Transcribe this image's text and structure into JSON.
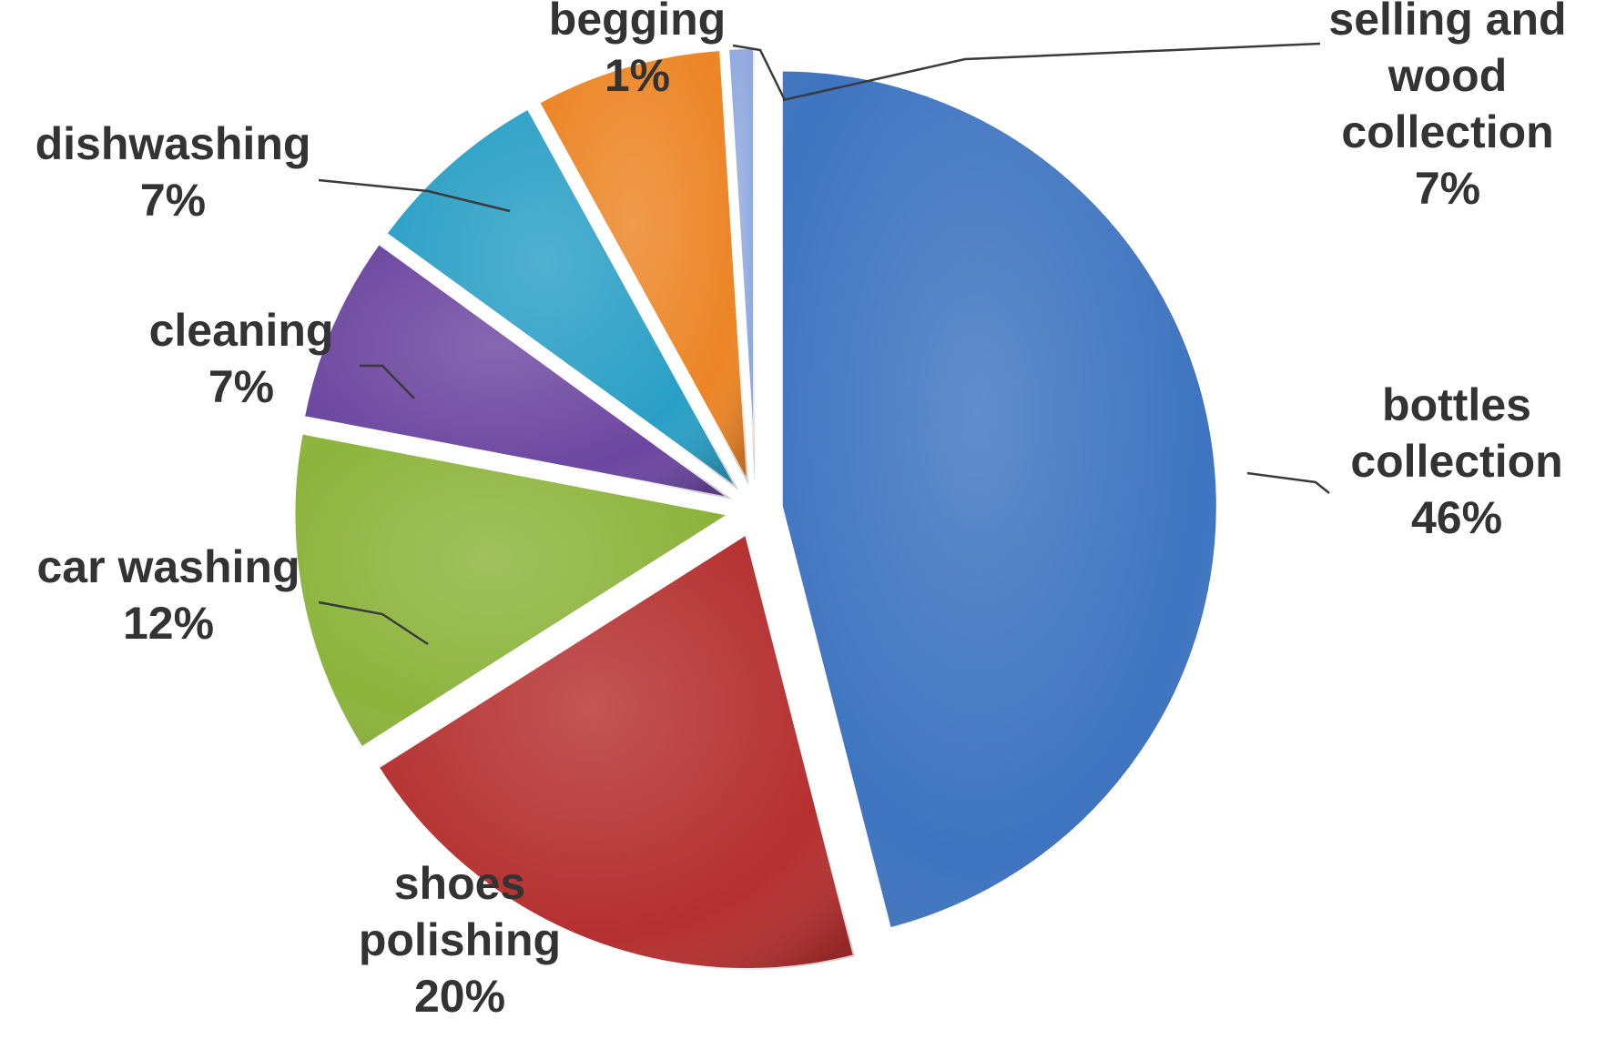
{
  "chart_data": {
    "type": "pie",
    "title": "",
    "slices": [
      {
        "name": "bottles collection",
        "lines": [
          "bottles",
          "collection"
        ],
        "value": 46,
        "value_label": "46%",
        "color": "#3e74c0"
      },
      {
        "name": "shoes polishing",
        "lines": [
          "shoes",
          "polishing"
        ],
        "value": 20,
        "value_label": "20%",
        "color": "#b53030"
      },
      {
        "name": "car washing",
        "lines": [
          "car washing"
        ],
        "value": 12,
        "value_label": "12%",
        "color": "#8cb43c"
      },
      {
        "name": "cleaning",
        "lines": [
          "cleaning"
        ],
        "value": 7,
        "value_label": "7%",
        "color": "#6c46a0"
      },
      {
        "name": "dishwashing",
        "lines": [
          "dishwashing"
        ],
        "value": 7,
        "value_label": "7%",
        "color": "#2a9fc6"
      },
      {
        "name": "selling and wood collection",
        "lines": [
          "selling and",
          "wood",
          "collection"
        ],
        "value": 7,
        "value_label": "7%",
        "color": "#ec8526"
      },
      {
        "name": "begging",
        "lines": [
          "begging"
        ],
        "value": 1,
        "value_label": "1%",
        "color": "#8ea9e0"
      }
    ]
  }
}
